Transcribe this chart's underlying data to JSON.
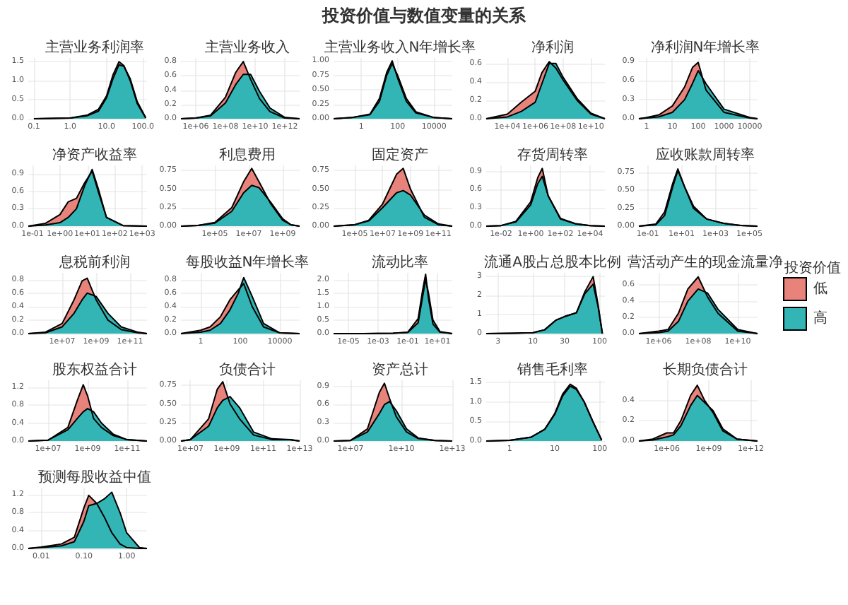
{
  "chart_data": [
    {
      "type": "other",
      "title": "投资价值与数值变量的关系"
    },
    {
      "type": "area",
      "title": "主营业务利润率",
      "log": "x",
      "grid": true,
      "xlim": [
        0.07,
        130
      ],
      "xticks": [
        0.1,
        {
          "value": 1,
          "label": "1.0"
        },
        {
          "value": 10,
          "label": "10.0"
        },
        {
          "value": 100,
          "label": "100.0"
        }
      ],
      "ylim": [
        0,
        1.6
      ],
      "yticks": [
        {
          "value": 0,
          "label": "0.0"
        },
        0.5,
        {
          "value": 1,
          "label": "1.0"
        },
        1.5
      ],
      "x": [
        0.1,
        1,
        3,
        6,
        10,
        15,
        22,
        30,
        45,
        70,
        120
      ],
      "series": [
        {
          "color": "#e8837b",
          "values": [
            0,
            0.02,
            0.1,
            0.25,
            0.6,
            1.15,
            1.5,
            1.4,
            1.0,
            0.4,
            0.02
          ]
        },
        {
          "color": "#33b5b5",
          "values": [
            0,
            0.02,
            0.08,
            0.2,
            0.55,
            1.05,
            1.42,
            1.38,
            1.05,
            0.45,
            0.03
          ]
        }
      ]
    },
    {
      "type": "area",
      "title": "主营业务收入",
      "log": "x",
      "grid": true,
      "xlim": [
        100000.0,
        10000000000000.0
      ],
      "xticks": [
        {
          "value": 1000000.0,
          "label": "1e+06"
        },
        {
          "value": 100000000.0,
          "label": "1e+08"
        },
        {
          "value": 10000000000.0,
          "label": "1e+10"
        },
        {
          "value": 1000000000000.0,
          "label": "1e+12"
        }
      ],
      "ylim": [
        0,
        0.85
      ],
      "yticks": [
        {
          "value": 0,
          "label": "0.0"
        },
        0.2,
        0.4,
        0.6,
        0.8
      ],
      "x": [
        100000.0,
        1000000.0,
        10000000.0,
        100000000.0,
        500000000.0,
        1600000000.0,
        5000000000.0,
        20000000000.0,
        100000000000.0,
        1000000000000.0,
        10000000000000.0
      ],
      "series": [
        {
          "color": "#e8837b",
          "values": [
            0,
            0.01,
            0.05,
            0.3,
            0.65,
            0.8,
            0.55,
            0.28,
            0.1,
            0.01,
            0
          ]
        },
        {
          "color": "#33b5b5",
          "values": [
            0,
            0.01,
            0.04,
            0.22,
            0.48,
            0.62,
            0.62,
            0.38,
            0.15,
            0.02,
            0
          ]
        }
      ]
    },
    {
      "type": "area",
      "title": "主营业务收入N年增长率",
      "log": "x",
      "grid": true,
      "xlim": [
        0.03,
        100000.0
      ],
      "xticks": [
        1,
        100,
        10000
      ],
      "ylim": [
        0,
        1.05
      ],
      "yticks": [
        {
          "value": 0,
          "label": "0.00"
        },
        0.25,
        {
          "value": 0.5,
          "label": "0.50"
        },
        0.75,
        {
          "value": 1,
          "label": "1.00"
        }
      ],
      "x": [
        0.03,
        0.3,
        3,
        10,
        25,
        50,
        100,
        300,
        1000,
        10000.0,
        100000.0
      ],
      "series": [
        {
          "color": "#e8837b",
          "values": [
            0,
            0.02,
            0.08,
            0.35,
            0.8,
            1.0,
            0.7,
            0.3,
            0.1,
            0.02,
            0
          ]
        },
        {
          "color": "#33b5b5",
          "values": [
            0,
            0.02,
            0.07,
            0.3,
            0.75,
            0.95,
            0.75,
            0.35,
            0.12,
            0.02,
            0
          ]
        }
      ]
    },
    {
      "type": "area",
      "title": "净利润",
      "log": "x",
      "grid": true,
      "xlim": [
        300,
        100000000000.0
      ],
      "xticks": [
        {
          "value": 10000.0,
          "label": "1e+04"
        },
        {
          "value": 1000000.0,
          "label": "1e+06"
        },
        {
          "value": 100000000.0,
          "label": "1e+08"
        },
        {
          "value": 10000000000.0,
          "label": "1e+10"
        }
      ],
      "ylim": [
        0,
        0.66
      ],
      "yticks": [
        {
          "value": 0,
          "label": "0.0"
        },
        0.2,
        0.4,
        0.6
      ],
      "x": [
        300,
        10000.0,
        100000.0,
        1000000.0,
        3000000.0,
        10000000.0,
        30000000.0,
        100000000.0,
        1000000000.0,
        10000000000.0,
        100000000000.0
      ],
      "series": [
        {
          "color": "#e8837b",
          "values": [
            0,
            0.05,
            0.18,
            0.3,
            0.5,
            0.62,
            0.55,
            0.42,
            0.2,
            0.05,
            0
          ]
        },
        {
          "color": "#33b5b5",
          "values": [
            0,
            0.02,
            0.08,
            0.18,
            0.38,
            0.6,
            0.6,
            0.45,
            0.22,
            0.06,
            0
          ]
        }
      ]
    },
    {
      "type": "area",
      "title": "净利润N年增长率",
      "log": "x",
      "grid": true,
      "xlim": [
        0.5,
        20000
      ],
      "xticks": [
        1,
        10,
        100,
        1000,
        10000
      ],
      "ylim": [
        0,
        0.95
      ],
      "yticks": [
        {
          "value": 0,
          "label": "0.0"
        },
        0.3,
        0.6,
        0.9
      ],
      "x": [
        0.5,
        1,
        3,
        10,
        30,
        60,
        100,
        200,
        1000,
        10000.0,
        20000.0
      ],
      "series": [
        {
          "color": "#e8837b",
          "values": [
            0,
            0.02,
            0.06,
            0.2,
            0.5,
            0.8,
            0.88,
            0.45,
            0.1,
            0.01,
            0
          ]
        },
        {
          "color": "#33b5b5",
          "values": [
            0,
            0.01,
            0.03,
            0.1,
            0.3,
            0.55,
            0.75,
            0.55,
            0.15,
            0.02,
            0
          ]
        }
      ]
    },
    {
      "type": "area",
      "title": "净资产收益率",
      "log": "x",
      "grid": true,
      "xlim": [
        0.07,
        1500
      ],
      "xticks": [
        {
          "value": 0.1,
          "label": "1e-01"
        },
        {
          "value": 1,
          "label": "1e+00"
        },
        {
          "value": 10,
          "label": "1e+01"
        },
        {
          "value": 100,
          "label": "1e+02"
        },
        {
          "value": 1000,
          "label": "1e+03"
        }
      ],
      "ylim": [
        0,
        1.05
      ],
      "yticks": [
        {
          "value": 0,
          "label": "0.0"
        },
        0.3,
        0.6,
        0.9
      ],
      "x": [
        0.07,
        0.3,
        1,
        2,
        4,
        8,
        15,
        25,
        50,
        200,
        1500
      ],
      "series": [
        {
          "color": "#e8837b",
          "values": [
            0,
            0.05,
            0.2,
            0.42,
            0.48,
            0.75,
            0.95,
            0.6,
            0.15,
            0.01,
            0
          ]
        },
        {
          "color": "#33b5b5",
          "values": [
            0,
            0.02,
            0.06,
            0.15,
            0.3,
            0.7,
            0.98,
            0.65,
            0.15,
            0.01,
            0
          ]
        }
      ]
    },
    {
      "type": "area",
      "title": "利息费用",
      "log": "x",
      "grid": true,
      "xlim": [
        1000,
        10000000000.0
      ],
      "xticks": [
        {
          "value": 100000.0,
          "label": "1e+05"
        },
        {
          "value": 10000000.0,
          "label": "1e+07"
        },
        {
          "value": 1000000000.0,
          "label": "1e+09"
        }
      ],
      "ylim": [
        0,
        0.82
      ],
      "yticks": [
        {
          "value": 0,
          "label": "0.00"
        },
        0.25,
        {
          "value": 0.5,
          "label": "0.50"
        },
        0.75
      ],
      "x": [
        1000,
        10000.0,
        100000.0,
        1000000.0,
        5000000.0,
        15000000.0,
        40000000.0,
        200000000.0,
        1000000000.0,
        3000000000.0,
        10000000000.0
      ],
      "series": [
        {
          "color": "#e8837b",
          "values": [
            0,
            0.01,
            0.05,
            0.25,
            0.6,
            0.78,
            0.6,
            0.3,
            0.08,
            0.02,
            0
          ]
        },
        {
          "color": "#33b5b5",
          "values": [
            0,
            0.01,
            0.04,
            0.2,
            0.45,
            0.55,
            0.52,
            0.32,
            0.1,
            0.02,
            0
          ]
        }
      ]
    },
    {
      "type": "area",
      "title": "固定资产",
      "log": "x",
      "grid": true,
      "xlim": [
        3000,
        1000000000000.0
      ],
      "xticks": [
        {
          "value": 100000.0,
          "label": "1e+05"
        },
        {
          "value": 10000000.0,
          "label": "1e+07"
        },
        {
          "value": 1000000000.0,
          "label": "1e+09"
        },
        {
          "value": 100000000000.0,
          "label": "1e+11"
        }
      ],
      "ylim": [
        0,
        0.82
      ],
      "yticks": [
        {
          "value": 0,
          "label": "0.00"
        },
        0.25,
        {
          "value": 0.5,
          "label": "0.50"
        },
        0.75
      ],
      "x": [
        3000,
        100000.0,
        1000000.0,
        10000000.0,
        100000000.0,
        300000000.0,
        1000000000.0,
        10000000000.0,
        100000000000.0,
        1000000000000.0
      ],
      "series": [
        {
          "color": "#e8837b",
          "values": [
            0,
            0.02,
            0.08,
            0.3,
            0.7,
            0.78,
            0.5,
            0.12,
            0.02,
            0
          ]
        },
        {
          "color": "#33b5b5",
          "values": [
            0,
            0.02,
            0.07,
            0.25,
            0.45,
            0.48,
            0.42,
            0.15,
            0.03,
            0
          ]
        }
      ]
    },
    {
      "type": "area",
      "title": "存货周转率",
      "log": "x",
      "grid": true,
      "xlim": [
        0.001,
        100000.0
      ],
      "xticks": [
        {
          "value": 0.01,
          "label": "1e-02"
        },
        {
          "value": 1,
          "label": "1e+00"
        },
        {
          "value": 100,
          "label": "1e+02"
        },
        {
          "value": 10000,
          "label": "1e+04"
        }
      ],
      "ylim": [
        0,
        1.0
      ],
      "yticks": [
        {
          "value": 0,
          "label": "0.0"
        },
        0.3,
        0.6,
        0.9
      ],
      "x": [
        0.001,
        0.01,
        0.1,
        1,
        3,
        6,
        15,
        100,
        1000,
        10000.0,
        100000.0
      ],
      "series": [
        {
          "color": "#e8837b",
          "values": [
            0,
            0.01,
            0.08,
            0.4,
            0.8,
            0.95,
            0.5,
            0.12,
            0.04,
            0.01,
            0
          ]
        },
        {
          "color": "#33b5b5",
          "values": [
            0,
            0.01,
            0.07,
            0.35,
            0.7,
            0.82,
            0.5,
            0.13,
            0.04,
            0.01,
            0
          ]
        }
      ]
    },
    {
      "type": "area",
      "title": "应收账款周转率",
      "log": "x",
      "grid": true,
      "xlim": [
        0.03,
        300000.0
      ],
      "xticks": [
        {
          "value": 0.1,
          "label": "1e-01"
        },
        {
          "value": 10,
          "label": "1e+01"
        },
        {
          "value": 1000,
          "label": "1e+03"
        },
        {
          "value": 100000.0,
          "label": "1e+05"
        }
      ],
      "ylim": [
        0,
        0.85
      ],
      "yticks": [
        {
          "value": 0,
          "label": "0.00"
        },
        0.25,
        {
          "value": 0.5,
          "label": "0.50"
        },
        0.75
      ],
      "x": [
        0.03,
        0.3,
        1,
        3,
        6,
        15,
        50,
        300,
        3000,
        30000.0,
        300000.0
      ],
      "series": [
        {
          "color": "#e8837b",
          "values": [
            0,
            0.03,
            0.2,
            0.6,
            0.8,
            0.55,
            0.25,
            0.1,
            0.04,
            0.01,
            0
          ]
        },
        {
          "color": "#33b5b5",
          "values": [
            0,
            0.02,
            0.15,
            0.55,
            0.78,
            0.55,
            0.28,
            0.1,
            0.04,
            0.01,
            0
          ]
        }
      ]
    },
    {
      "type": "area",
      "title": "息税前利润",
      "log": "x",
      "grid": true,
      "xlim": [
        100000.0,
        1000000000000.0
      ],
      "xticks": [
        {
          "value": 10000000.0,
          "label": "1e+07"
        },
        {
          "value": 1000000000.0,
          "label": "1e+09"
        },
        {
          "value": 100000000000.0,
          "label": "1e+11"
        }
      ],
      "ylim": [
        0,
        0.9
      ],
      "yticks": [
        {
          "value": 0,
          "label": "0.0"
        },
        0.2,
        0.4,
        0.6,
        0.8
      ],
      "x": [
        100000.0,
        1000000.0,
        10000000.0,
        50000000.0,
        150000000.0,
        300000000.0,
        1000000000.0,
        5000000000.0,
        30000000000.0,
        300000000000.0,
        1000000000000.0
      ],
      "series": [
        {
          "color": "#e8837b",
          "values": [
            0,
            0.02,
            0.15,
            0.5,
            0.78,
            0.82,
            0.5,
            0.2,
            0.06,
            0.01,
            0
          ]
        },
        {
          "color": "#33b5b5",
          "values": [
            0,
            0.01,
            0.1,
            0.3,
            0.5,
            0.6,
            0.55,
            0.3,
            0.1,
            0.02,
            0
          ]
        }
      ]
    },
    {
      "type": "area",
      "title": "每股收益N年增长率",
      "log": "x",
      "grid": true,
      "xlim": [
        0.1,
        100000.0
      ],
      "xticks": [
        1,
        100,
        10000
      ],
      "ylim": [
        0,
        0.9
      ],
      "yticks": [
        {
          "value": 0,
          "label": "0.0"
        },
        0.2,
        0.4,
        0.6,
        0.8
      ],
      "x": [
        0.1,
        1,
        3,
        10,
        30,
        80,
        150,
        400,
        1500,
        10000.0,
        100000.0
      ],
      "series": [
        {
          "color": "#e8837b",
          "values": [
            0,
            0.05,
            0.1,
            0.25,
            0.5,
            0.65,
            0.74,
            0.4,
            0.1,
            0.01,
            0
          ]
        },
        {
          "color": "#33b5b5",
          "values": [
            0,
            0.02,
            0.05,
            0.15,
            0.35,
            0.6,
            0.83,
            0.55,
            0.15,
            0.01,
            0
          ]
        }
      ]
    },
    {
      "type": "area",
      "title": "流动比率",
      "log": "x",
      "grid": true,
      "xlim": [
        1e-06,
        100
      ],
      "xticks": [
        {
          "value": 1e-05,
          "label": "1e-05"
        },
        {
          "value": 0.001,
          "label": "1e-03"
        },
        {
          "value": 0.1,
          "label": "1e-01"
        },
        {
          "value": 10,
          "label": "1e+01"
        }
      ],
      "ylim": [
        0,
        2.25
      ],
      "yticks": [
        {
          "value": 0,
          "label": "0.0"
        },
        0.5,
        {
          "value": 1,
          "label": "1.0"
        },
        1.5,
        {
          "value": 2,
          "label": "2.0"
        }
      ],
      "x": [
        1e-06,
        0.0001,
        0.01,
        0.1,
        0.5,
        1,
        1.6,
        2.5,
        5,
        15,
        100
      ],
      "series": [
        {
          "color": "#e8837b",
          "values": [
            0,
            0,
            0.01,
            0.05,
            0.55,
            1.6,
            2.2,
            1.3,
            0.35,
            0.05,
            0
          ]
        },
        {
          "color": "#33b5b5",
          "values": [
            0,
            0,
            0.01,
            0.04,
            0.4,
            1.35,
            2.0,
            1.5,
            0.5,
            0.07,
            0
          ]
        }
      ]
    },
    {
      "type": "area",
      "title": "流通A股占总股本比例",
      "log": "x",
      "grid": true,
      "xlim": [
        2,
        120
      ],
      "xticks": [
        3,
        10,
        30,
        100
      ],
      "ylim": [
        0,
        3.2
      ],
      "yticks": [
        0,
        1,
        2,
        3
      ],
      "x": [
        2,
        5,
        10,
        15,
        22,
        30,
        45,
        60,
        80,
        95,
        110
      ],
      "series": [
        {
          "color": "#e8837b",
          "values": [
            0,
            0.02,
            0.05,
            0.2,
            0.7,
            0.9,
            1.1,
            2.2,
            3.0,
            1.5,
            0
          ]
        },
        {
          "color": "#33b5b5",
          "values": [
            0,
            0.02,
            0.05,
            0.2,
            0.7,
            0.9,
            1.1,
            2.1,
            2.6,
            1.4,
            0
          ]
        }
      ]
    },
    {
      "type": "area",
      "title": "营活动产生的现金流量净",
      "log": "x",
      "grid": true,
      "legend": "right",
      "legend_title": "投资价值",
      "xlim": [
        100000.0,
        100000000000.0
      ],
      "xticks": [
        {
          "value": 1000000.0,
          "label": "1e+06"
        },
        {
          "value": 100000000.0,
          "label": "1e+08"
        },
        {
          "value": 10000000000.0,
          "label": "1e+10"
        }
      ],
      "ylim": [
        0,
        0.75
      ],
      "yticks": [
        {
          "value": 0,
          "label": "0.0"
        },
        0.2,
        0.4,
        0.6
      ],
      "x": [
        100000.0,
        1000000.0,
        3000000.0,
        10000000.0,
        30000000.0,
        100000000.0,
        300000000.0,
        1000000000.0,
        10000000000.0,
        100000000000.0
      ],
      "series": [
        {
          "name": "低",
          "color": "#e8837b",
          "values": [
            0,
            0.03,
            0.05,
            0.25,
            0.55,
            0.7,
            0.45,
            0.25,
            0.03,
            0
          ]
        },
        {
          "name": "高",
          "color": "#33b5b5",
          "values": [
            0,
            0.01,
            0.03,
            0.15,
            0.4,
            0.55,
            0.5,
            0.3,
            0.05,
            0
          ]
        }
      ]
    },
    {
      "type": "area",
      "title": "股东权益合计",
      "log": "x",
      "grid": true,
      "xlim": [
        1000000.0,
        1000000000000.0
      ],
      "xticks": [
        {
          "value": 10000000.0,
          "label": "1e+07"
        },
        {
          "value": 1000000000.0,
          "label": "1e+09"
        },
        {
          "value": 100000000000.0,
          "label": "1e+11"
        }
      ],
      "ylim": [
        0,
        1.35
      ],
      "yticks": [
        {
          "value": 0,
          "label": "0.0"
        },
        0.4,
        0.8,
        1.2
      ],
      "x": [
        1000000.0,
        10000000.0,
        100000000.0,
        300000000.0,
        600000000.0,
        1000000000.0,
        2000000000.0,
        5000000000.0,
        20000000000.0,
        100000000000.0,
        1000000000000.0
      ],
      "series": [
        {
          "color": "#e8837b",
          "values": [
            0,
            0.02,
            0.3,
            0.9,
            1.25,
            1.0,
            0.5,
            0.3,
            0.12,
            0.03,
            0
          ]
        },
        {
          "color": "#33b5b5",
          "values": [
            0,
            0.02,
            0.25,
            0.5,
            0.65,
            0.72,
            0.65,
            0.4,
            0.15,
            0.03,
            0
          ]
        }
      ]
    },
    {
      "type": "area",
      "title": "负债合计",
      "log": "x",
      "grid": true,
      "xlim": [
        3000000.0,
        10000000000000.0
      ],
      "xticks": [
        {
          "value": 10000000.0,
          "label": "1e+07"
        },
        {
          "value": 1000000000.0,
          "label": "1e+09"
        },
        {
          "value": 100000000000.0,
          "label": "1e+11"
        },
        {
          "value": 10000000000000.0,
          "label": "1e+13"
        }
      ],
      "ylim": [
        0,
        0.82
      ],
      "yticks": [
        {
          "value": 0,
          "label": "0.00"
        },
        0.25,
        {
          "value": 0.5,
          "label": "0.50"
        },
        0.75
      ],
      "x": [
        3000000.0,
        10000000.0,
        100000000.0,
        300000000.0,
        600000000.0,
        1500000000.0,
        5000000000.0,
        30000000000.0,
        300000000000.0,
        3000000000000.0,
        10000000000000.0
      ],
      "series": [
        {
          "color": "#e8837b",
          "values": [
            0,
            0.02,
            0.3,
            0.7,
            0.8,
            0.5,
            0.3,
            0.08,
            0.02,
            0.02,
            0
          ]
        },
        {
          "color": "#33b5b5",
          "values": [
            0,
            0.02,
            0.2,
            0.45,
            0.55,
            0.6,
            0.45,
            0.12,
            0.03,
            0.02,
            0
          ]
        }
      ]
    },
    {
      "type": "area",
      "title": "资产总计",
      "log": "x",
      "grid": true,
      "xlim": [
        1000000.0,
        10000000000000.0
      ],
      "xticks": [
        {
          "value": 10000000.0,
          "label": "1e+07"
        },
        {
          "value": 10000000000.0,
          "label": "1e+10"
        },
        {
          "value": 10000000000000.0,
          "label": "1e+13"
        }
      ],
      "ylim": [
        0,
        1.0
      ],
      "yticks": [
        {
          "value": 0,
          "label": "0.0"
        },
        0.3,
        0.6,
        0.9
      ],
      "x": [
        1000000.0,
        10000000.0,
        100000000.0,
        500000000.0,
        1000000000.0,
        2000000000.0,
        5000000000.0,
        20000000000.0,
        100000000000.0,
        1000000000000.0,
        10000000000000.0
      ],
      "series": [
        {
          "color": "#e8837b",
          "values": [
            0,
            0.01,
            0.2,
            0.8,
            0.95,
            0.7,
            0.4,
            0.15,
            0.04,
            0.01,
            0
          ]
        },
        {
          "color": "#33b5b5",
          "values": [
            0,
            0.01,
            0.15,
            0.45,
            0.6,
            0.65,
            0.5,
            0.2,
            0.05,
            0.01,
            0
          ]
        }
      ]
    },
    {
      "type": "area",
      "title": "销售毛利率",
      "log": "x",
      "grid": true,
      "xlim": [
        0.3,
        130
      ],
      "xticks": [
        1,
        10,
        100
      ],
      "ylim": [
        0,
        1.55
      ],
      "yticks": [
        {
          "value": 0,
          "label": "0.0"
        },
        0.5,
        {
          "value": 1,
          "label": "1.0"
        },
        1.5
      ],
      "x": [
        0.3,
        1,
        3,
        6,
        10,
        15,
        22,
        30,
        45,
        70,
        110
      ],
      "series": [
        {
          "color": "#e8837b",
          "values": [
            0,
            0.02,
            0.1,
            0.3,
            0.7,
            1.2,
            1.45,
            1.35,
            1.0,
            0.5,
            0.02
          ]
        },
        {
          "color": "#33b5b5",
          "values": [
            0,
            0.02,
            0.1,
            0.3,
            0.68,
            1.15,
            1.4,
            1.32,
            1.0,
            0.5,
            0.03
          ]
        }
      ]
    },
    {
      "type": "area",
      "title": "长期负债合计",
      "log": "x",
      "grid": true,
      "xlim": [
        10000.0,
        3000000000000.0
      ],
      "xticks": [
        {
          "value": 1000000.0,
          "label": "1e+06"
        },
        {
          "value": 1000000000.0,
          "label": "1e+09"
        },
        {
          "value": 1000000000000.0,
          "label": "1e+12"
        }
      ],
      "ylim": [
        0,
        0.6
      ],
      "yticks": [
        {
          "value": 0,
          "label": "0.0"
        },
        0.2,
        0.4
      ],
      "x": [
        10000.0,
        100000.0,
        1000000.0,
        3000000.0,
        10000000.0,
        50000000.0,
        150000000.0,
        500000000.0,
        2000000000.0,
        10000000000.0,
        100000000000.0,
        3000000000000.0
      ],
      "series": [
        {
          "color": "#e8837b",
          "values": [
            0,
            0.02,
            0.08,
            0.08,
            0.2,
            0.45,
            0.55,
            0.4,
            0.28,
            0.1,
            0.02,
            0
          ]
        },
        {
          "color": "#33b5b5",
          "values": [
            0,
            0.01,
            0.04,
            0.06,
            0.15,
            0.35,
            0.45,
            0.38,
            0.3,
            0.12,
            0.02,
            0
          ]
        }
      ]
    },
    {
      "type": "area",
      "title": "预测每股收益中值",
      "log": "x",
      "grid": true,
      "xlim": [
        0.005,
        3
      ],
      "xticks": [
        0.01,
        {
          "value": 0.1,
          "label": "0.10"
        },
        {
          "value": 1,
          "label": "1.00"
        }
      ],
      "ylim": [
        0,
        1.35
      ],
      "yticks": [
        {
          "value": 0,
          "label": "0.0"
        },
        0.4,
        0.8,
        1.2
      ],
      "x": [
        0.005,
        0.01,
        0.03,
        0.06,
        0.1,
        0.13,
        0.2,
        0.3,
        0.45,
        0.7,
        1,
        2,
        3
      ],
      "series": [
        {
          "color": "#e8837b",
          "values": [
            0,
            0.03,
            0.1,
            0.25,
            0.9,
            1.18,
            1.0,
            0.7,
            0.35,
            0.1,
            0.02,
            0,
            0
          ]
        },
        {
          "color": "#33b5b5",
          "values": [
            0,
            0.02,
            0.06,
            0.15,
            0.6,
            0.95,
            1.0,
            1.1,
            1.25,
            0.8,
            0.35,
            0.02,
            0
          ]
        }
      ]
    }
  ]
}
